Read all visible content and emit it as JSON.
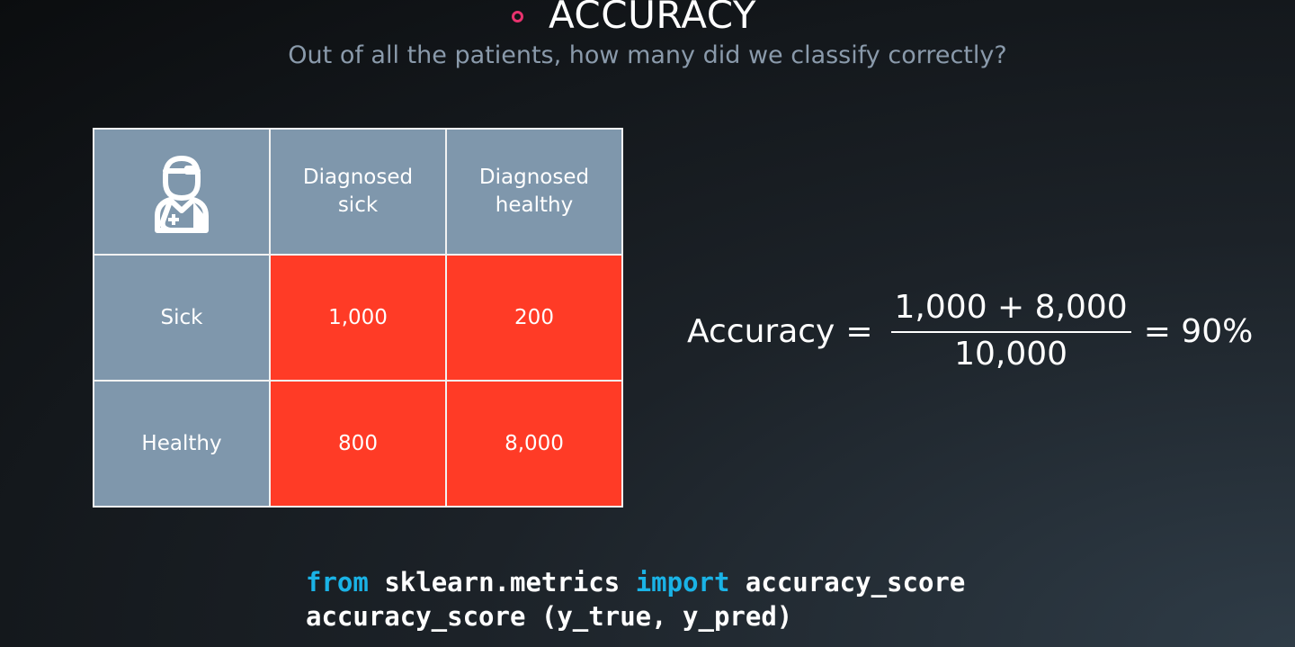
{
  "header": {
    "title": "ACCURACY",
    "subtitle": "Out of all the patients, how many did we classify correctly?",
    "bullet_color": "#e8326e"
  },
  "matrix": {
    "corner_icon": "doctor-icon",
    "col_headers": [
      "Diagnosed\nsick",
      "Diagnosed\nhealthy"
    ],
    "rows": [
      {
        "label": "Sick",
        "values": [
          "1,000",
          "200"
        ]
      },
      {
        "label": "Healthy",
        "values": [
          "800",
          "8,000"
        ]
      }
    ],
    "header_color": "#7f97ac",
    "value_color": "#ff3b26"
  },
  "formula": {
    "label": "Accuracy",
    "equals": "=",
    "numerator": "1,000 + 8,000",
    "denominator": "10,000",
    "result": "= 90%"
  },
  "code": {
    "line1": {
      "kw1": "from",
      "module": "sklearn.metrics",
      "kw2": "import",
      "name": "accuracy_score"
    },
    "line2": "accuracy_score (y_true, y_pred)",
    "keyword_color": "#1ab3e6"
  }
}
